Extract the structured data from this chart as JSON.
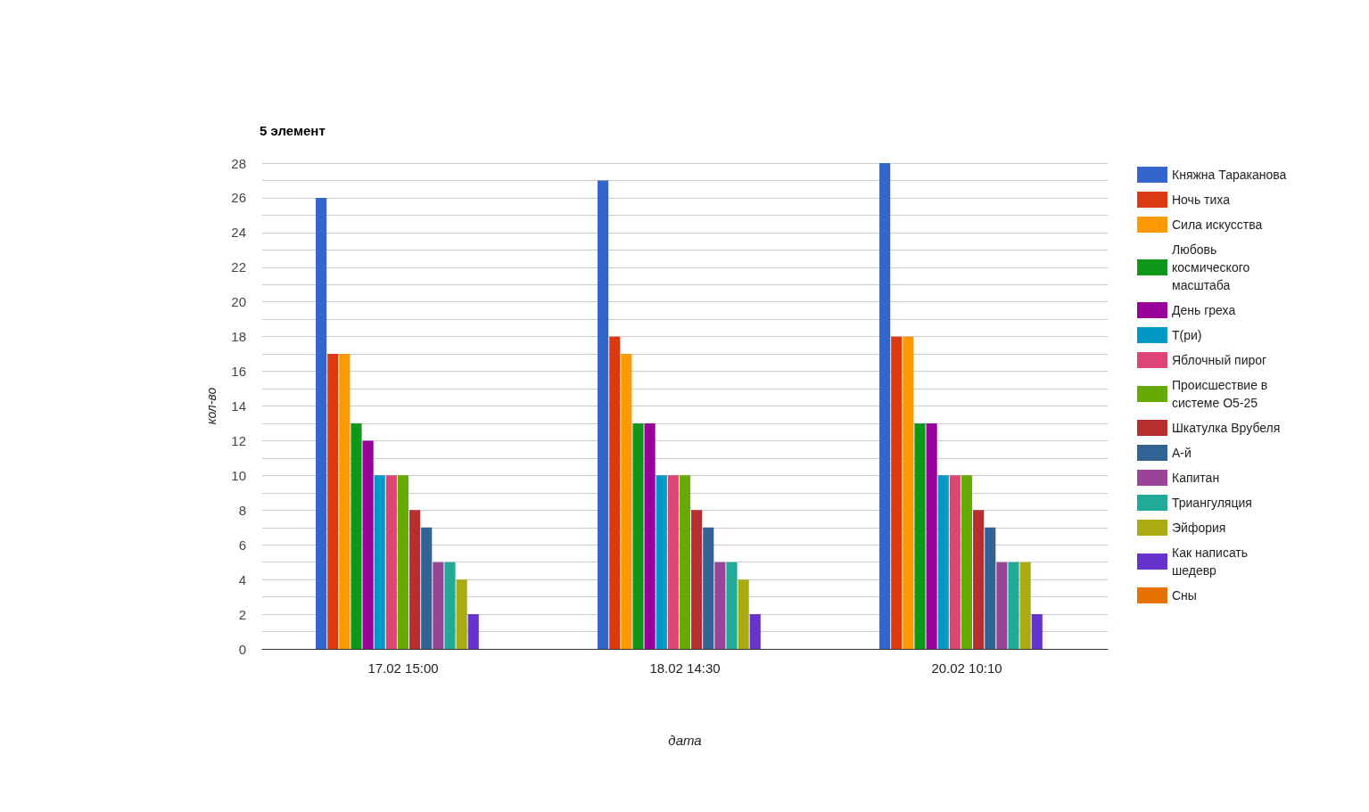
{
  "chart_data": {
    "type": "bar",
    "title": "5 элемент",
    "xlabel": "дата",
    "ylabel": "кол-во",
    "categories": [
      "17.02 15:00",
      "18.02 14:30",
      "20.02 10:10"
    ],
    "series": [
      {
        "name": "Княжна Тараканова",
        "color": "#3366cc",
        "values": [
          26,
          27,
          28
        ]
      },
      {
        "name": "Ночь тиха",
        "color": "#dc3912",
        "values": [
          17,
          18,
          18
        ]
      },
      {
        "name": "Сила искусства",
        "color": "#ff9900",
        "values": [
          17,
          17,
          18
        ]
      },
      {
        "name": "Любовь космического масштаба",
        "color": "#109618",
        "values": [
          13,
          13,
          13
        ]
      },
      {
        "name": "День греха",
        "color": "#990099",
        "values": [
          12,
          13,
          13
        ]
      },
      {
        "name": "Т(ри)",
        "color": "#0099c6",
        "values": [
          10,
          10,
          10
        ]
      },
      {
        "name": "Яблочный пирог",
        "color": "#dd4477",
        "values": [
          10,
          10,
          10
        ]
      },
      {
        "name": "Происшествие в системе О5-25",
        "color": "#66aa00",
        "values": [
          10,
          10,
          10
        ]
      },
      {
        "name": "Шкатулка Врубеля",
        "color": "#b82e2e",
        "values": [
          8,
          8,
          8
        ]
      },
      {
        "name": "А-й",
        "color": "#316395",
        "values": [
          7,
          7,
          7
        ]
      },
      {
        "name": "Капитан",
        "color": "#994499",
        "values": [
          5,
          5,
          5
        ]
      },
      {
        "name": "Триангуляция",
        "color": "#22aa99",
        "values": [
          5,
          5,
          5
        ]
      },
      {
        "name": "Эйфория",
        "color": "#aaaa11",
        "values": [
          4,
          4,
          5
        ]
      },
      {
        "name": "Как написать шедевр",
        "color": "#6633cc",
        "values": [
          2,
          2,
          2
        ]
      },
      {
        "name": "Сны",
        "color": "#e67300",
        "values": [
          0,
          0,
          0
        ]
      }
    ],
    "ylim": [
      0,
      28
    ],
    "yticks": [
      0,
      {
        "value": 1,
        "label": null
      },
      2,
      {
        "value": 3,
        "label": null
      },
      4,
      {
        "value": 5,
        "label": null
      },
      6,
      {
        "value": 7,
        "label": null
      },
      8,
      {
        "value": 9,
        "label": null
      },
      10,
      {
        "value": 11,
        "label": null
      },
      12,
      {
        "value": 13,
        "label": null
      },
      14,
      {
        "value": 15,
        "label": null
      },
      16,
      {
        "value": 17,
        "label": null
      },
      18,
      {
        "value": 19,
        "label": null
      },
      20,
      {
        "value": 21,
        "label": null
      },
      22,
      {
        "value": 23,
        "label": null
      },
      24,
      {
        "value": 25,
        "label": null
      },
      26,
      {
        "value": 27,
        "label": null
      },
      28
    ],
    "grid": true,
    "legend": "right"
  }
}
